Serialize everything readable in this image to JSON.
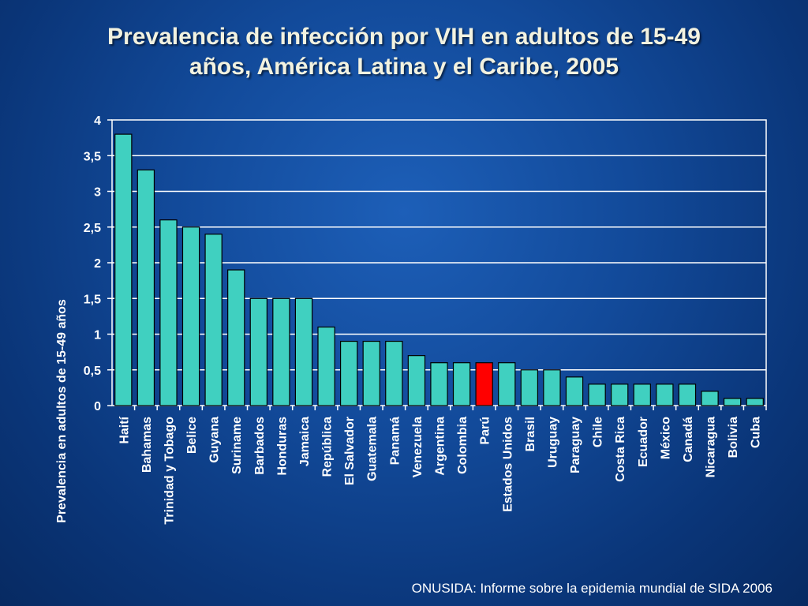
{
  "header": {
    "title_line1": "Prevalencia de infección por VIH en adultos de 15-49",
    "title_line2": "años, América Latina y el Caribe, 2005"
  },
  "footer": {
    "source": "ONUSIDA: Informe sobre la epidemia mundial de SIDA 2006"
  },
  "colors": {
    "bar": "#40d0c0",
    "highlight": "#ff0000",
    "grid": "#ffffff",
    "text": "#ffffff"
  },
  "chart_data": {
    "type": "bar",
    "title": "Prevalencia de infección por VIH en adultos de 15-49 años, América Latina y el Caribe, 2005",
    "xlabel": "",
    "ylabel": "Prevalencia en adultos de 15-49 años",
    "ylim": [
      0,
      4
    ],
    "yticks": [
      0,
      0.5,
      1,
      1.5,
      2,
      2.5,
      3,
      3.5,
      4
    ],
    "ytick_labels": [
      "0",
      "0,5",
      "1",
      "1,5",
      "2",
      "2,5",
      "3",
      "3,5",
      "4"
    ],
    "grid": true,
    "legend": "none",
    "highlight_category": "Parú",
    "categories": [
      "Haití",
      "Bahamas",
      "Trinidad y Tobago",
      "Belice",
      "Guyana",
      "Suriname",
      "Barbados",
      "Honduras",
      "Jamaica",
      "República",
      "El Salvador",
      "Guatemala",
      "Panamá",
      "Venezuela",
      "Argentina",
      "Colombia",
      "Parú",
      "Estados Unidos",
      "Brasil",
      "Uruguay",
      "Paraguay",
      "Chile",
      "Costa Rica",
      "Ecuador",
      "México",
      "Canadá",
      "Nicaragua",
      "Bolivia",
      "Cuba"
    ],
    "values": [
      3.8,
      3.3,
      2.6,
      2.5,
      2.4,
      1.9,
      1.5,
      1.5,
      1.5,
      1.1,
      0.9,
      0.9,
      0.9,
      0.7,
      0.6,
      0.6,
      0.6,
      0.6,
      0.5,
      0.5,
      0.4,
      0.3,
      0.3,
      0.3,
      0.3,
      0.3,
      0.2,
      0.1,
      0.1
    ]
  }
}
